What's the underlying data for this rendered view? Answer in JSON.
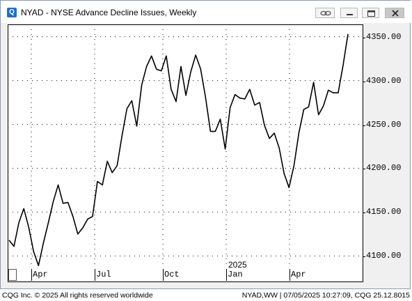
{
  "window": {
    "title": "NYAD - NYSE Advance Decline Issues, Weekly",
    "icon_letter": "Q"
  },
  "titlebar_buttons": [
    {
      "name": "link-icon"
    },
    {
      "name": "minimize-icon"
    },
    {
      "name": "maximize-icon"
    },
    {
      "name": "close-icon"
    }
  ],
  "status": {
    "left": "CQG Inc. © 2025 All rights reserved worldwide",
    "right": "NYAD,WW | 07/05/2025 10:27:09, CQG 25.12.8015"
  },
  "chart_data": {
    "type": "line",
    "title": "NYAD - NYSE Advance Decline Issues, Weekly",
    "year_marker": "2025",
    "x_tick_labels": [
      "Apr",
      "Jul",
      "Oct",
      "Jan",
      "Apr"
    ],
    "y_tick_labels": [
      "4350.00",
      "4300.00",
      "4250.00",
      "4200.00",
      "4150.00",
      "4100.00"
    ],
    "y_ticks": [
      4350,
      4300,
      4250,
      4200,
      4150,
      4100
    ],
    "ylim": [
      4086,
      4364
    ],
    "grid": true,
    "series": [
      {
        "values": [
          4118,
          4111,
          4138,
          4154,
          4133,
          4105,
          4089,
          4115,
          4138,
          4162,
          4181,
          4160,
          4161,
          4145,
          4125,
          4132,
          4142,
          4145,
          4185,
          4181,
          4208,
          4195,
          4203,
          4237,
          4268,
          4277,
          4248,
          4295,
          4316,
          4328,
          4313,
          4311,
          4328,
          4290,
          4276,
          4316,
          4283,
          4310,
          4329,
          4313,
          4281,
          4242,
          4242,
          4256,
          4222,
          4269,
          4284,
          4280,
          4279,
          4290,
          4272,
          4275,
          4249,
          4234,
          4240,
          4223,
          4194,
          4178,
          4203,
          4240,
          4267,
          4270,
          4298,
          4261,
          4271,
          4289,
          4286,
          4286,
          4317,
          4353
        ]
      }
    ]
  }
}
